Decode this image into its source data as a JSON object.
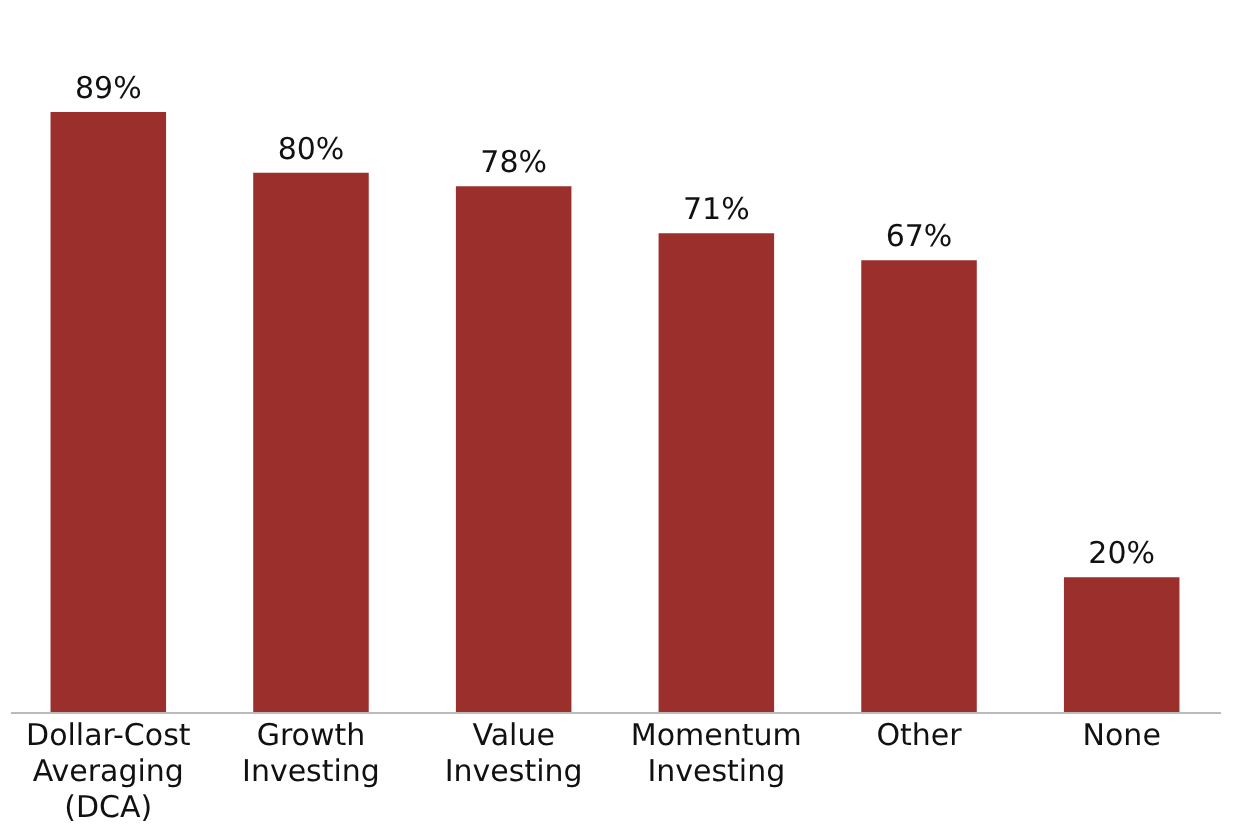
{
  "chart_data": {
    "type": "bar",
    "categories": [
      "Dollar-Cost Averaging (DCA)",
      "Growth Investing",
      "Value Investing",
      "Momentum Investing",
      "Other",
      "None"
    ],
    "values": [
      89,
      80,
      78,
      71,
      67,
      20
    ],
    "value_labels": [
      "89%",
      "80%",
      "78%",
      "71%",
      "67%",
      "20%"
    ],
    "color": "#9b2f2c",
    "grid": false
  }
}
